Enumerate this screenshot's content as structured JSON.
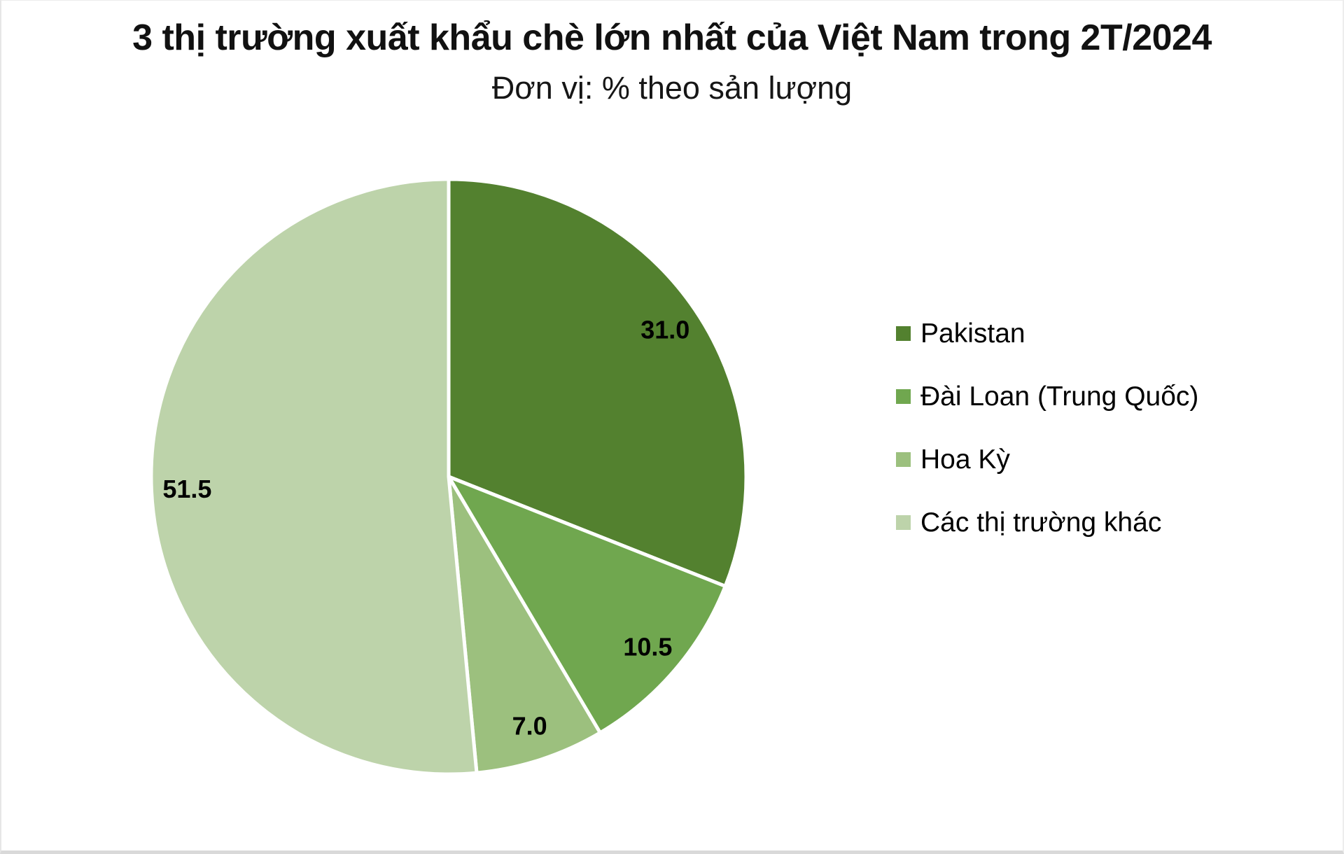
{
  "chart_data": {
    "type": "pie",
    "title": "3 thị trường xuất khẩu chè lớn nhất của Việt Nam trong 2T/2024",
    "subtitle": "Đơn vị: % theo sản lượng",
    "unit": "% theo sản lượng",
    "legend_position": "right",
    "start_angle_deg": 0,
    "direction": "clockwise",
    "data_labels": "inside-end",
    "label_color": "#000000",
    "slice_border_color": "#ffffff",
    "background_color": "#ffffff",
    "slices": [
      {
        "id": "pakistan",
        "label": "Pakistan",
        "value": 31.0,
        "display": "31.0",
        "color": "#53812F"
      },
      {
        "id": "dai-loan",
        "label": "Đài Loan (Trung Quốc)",
        "value": 10.5,
        "display": "10.5",
        "color": "#70A74F"
      },
      {
        "id": "hoa-ky",
        "label": "Hoa Kỳ",
        "value": 7.0,
        "display": "7.0",
        "color": "#9CC07E"
      },
      {
        "id": "khac",
        "label": "Các thị trường khác",
        "value": 51.5,
        "display": "51.5",
        "color": "#BDD3AA"
      }
    ]
  }
}
